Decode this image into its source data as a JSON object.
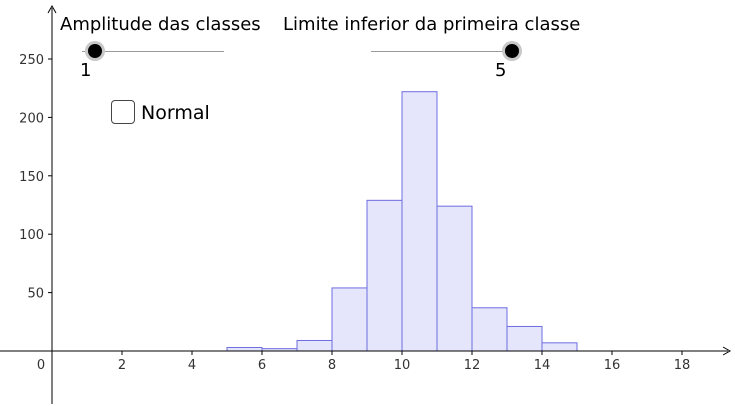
{
  "controls": {
    "amplitude": {
      "label": "Amplitude das classes",
      "value": "1"
    },
    "limit": {
      "label": "Limite inferior da primeira classe",
      "value": "5"
    },
    "normal": {
      "label": "Normal",
      "checked": false
    }
  },
  "chart_data": {
    "type": "bar",
    "title": "",
    "xlabel": "",
    "ylabel": "",
    "xlim": [
      -1.5,
      19.5
    ],
    "ylim": [
      -45,
      292
    ],
    "x_ticks": [
      0,
      2,
      4,
      6,
      8,
      10,
      12,
      14,
      16,
      18
    ],
    "y_ticks": [
      50,
      100,
      150,
      200,
      250
    ],
    "bins": [
      {
        "from": 5,
        "to": 6,
        "value": 3
      },
      {
        "from": 6,
        "to": 7,
        "value": 2
      },
      {
        "from": 7,
        "to": 8,
        "value": 9
      },
      {
        "from": 8,
        "to": 9,
        "value": 54
      },
      {
        "from": 9,
        "to": 10,
        "value": 129
      },
      {
        "from": 10,
        "to": 11,
        "value": 222
      },
      {
        "from": 11,
        "to": 12,
        "value": 124
      },
      {
        "from": 12,
        "to": 13,
        "value": 37
      },
      {
        "from": 13,
        "to": 14,
        "value": 21
      },
      {
        "from": 14,
        "to": 15,
        "value": 7
      },
      {
        "from": 15,
        "to": 16,
        "value": 0
      },
      {
        "from": 16,
        "to": 17,
        "value": 0
      },
      {
        "from": 17,
        "to": 18,
        "value": 0
      },
      {
        "from": 18,
        "to": 19,
        "value": 0
      }
    ],
    "colors": {
      "bar_fill": "#e5e5fb",
      "bar_stroke": "#6d6de0",
      "axis": "#000000"
    },
    "grid": false
  }
}
